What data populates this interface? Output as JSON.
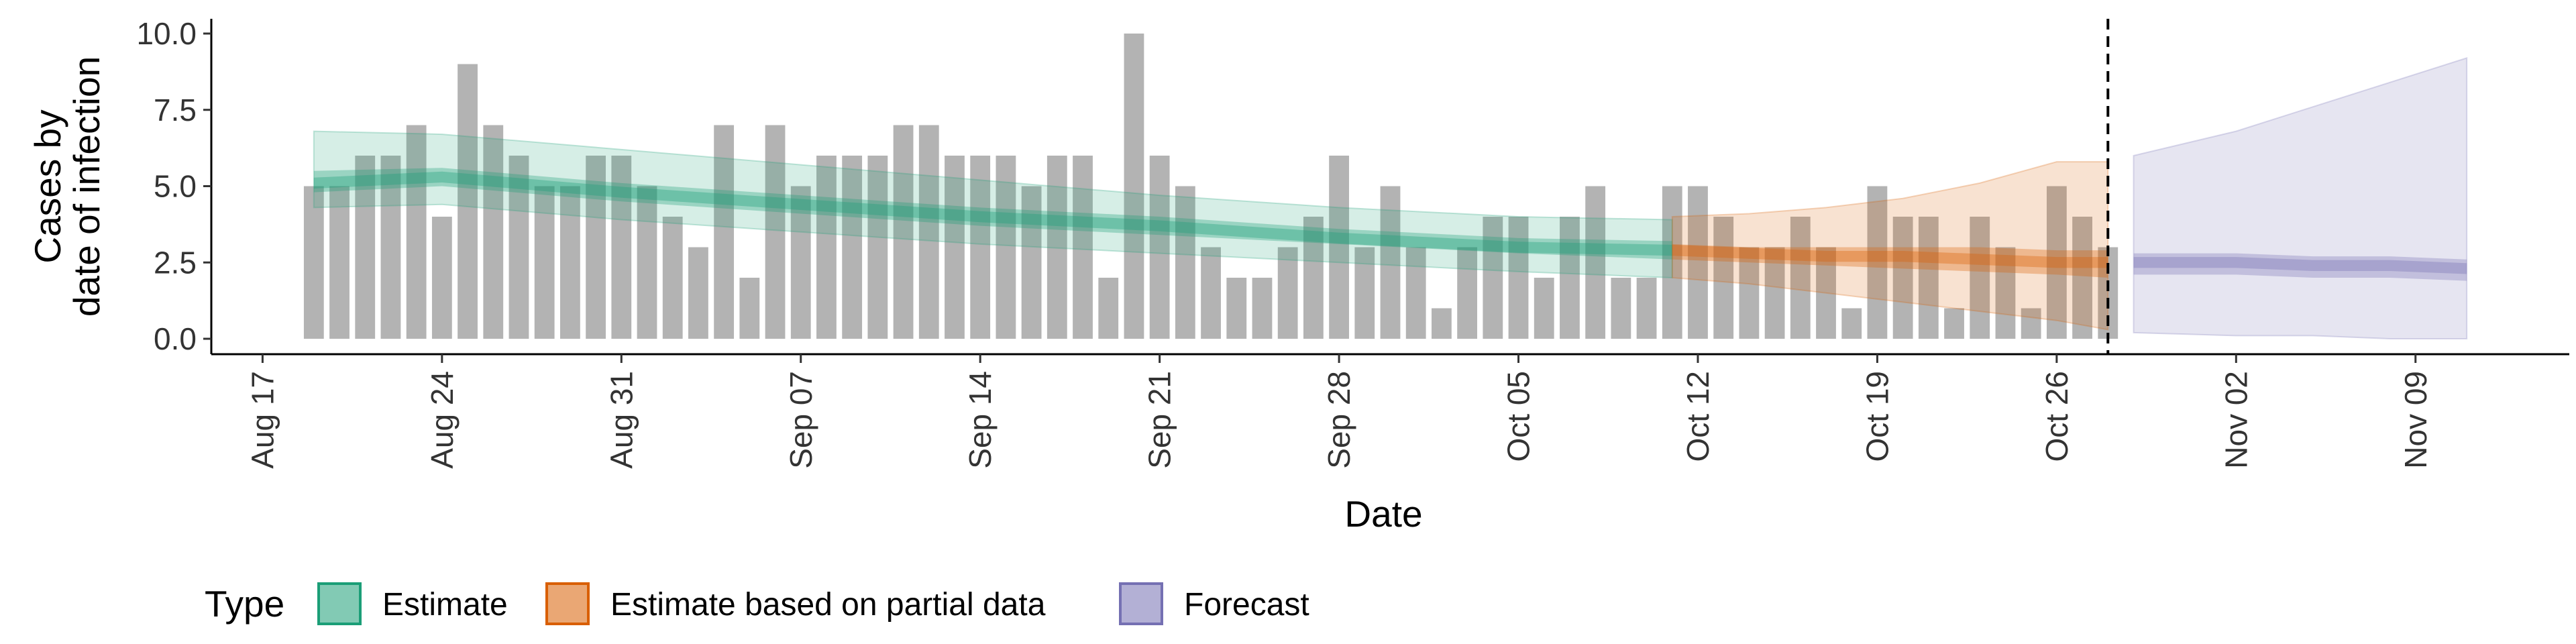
{
  "chart_data": {
    "type": "bar",
    "xlabel": "Date",
    "ylabel": [
      "Cases by",
      "date of infection"
    ],
    "x_start": "2020-08-19",
    "x_ticks": [
      "Aug 17",
      "Aug 24",
      "Aug 31",
      "Sep 07",
      "Sep 14",
      "Sep 21",
      "Sep 28",
      "Oct 05",
      "Oct 12",
      "Oct 19",
      "Oct 26",
      "Nov 02",
      "Nov 09"
    ],
    "xlim": [
      "2020-08-15",
      "2020-11-15"
    ],
    "y_ticks": [
      "0.0",
      "2.5",
      "5.0",
      "7.5",
      "10.0"
    ],
    "ylim": [
      0,
      10
    ],
    "reported_cases": [
      5,
      5,
      6,
      6,
      7,
      4,
      9,
      7,
      6,
      5,
      5,
      6,
      6,
      5,
      4,
      3,
      7,
      2,
      7,
      5,
      6,
      6,
      6,
      7,
      7,
      6,
      6,
      6,
      5,
      6,
      6,
      2,
      10,
      6,
      5,
      3,
      2,
      2,
      3,
      4,
      6,
      3,
      5,
      3,
      1,
      3,
      4,
      4,
      2,
      4,
      5,
      2,
      2,
      5,
      5,
      4,
      3,
      3,
      4,
      3,
      1,
      5,
      4,
      4,
      1,
      4,
      3,
      1,
      5,
      4,
      3
    ],
    "forecast_start_marker": "2020-10-28",
    "bands": [
      {
        "type": "Estimate",
        "color": "#1b9e77",
        "x": [
          "2020-08-19",
          "2020-08-24",
          "2020-08-31",
          "2020-09-07",
          "2020-09-14",
          "2020-09-21",
          "2020-09-28",
          "2020-10-05",
          "2020-10-11"
        ],
        "median": [
          5.1,
          5.3,
          4.8,
          4.4,
          4.0,
          3.7,
          3.3,
          3.0,
          2.9
        ],
        "lower_50": [
          4.8,
          5.0,
          4.5,
          4.1,
          3.7,
          3.4,
          3.1,
          2.8,
          2.6
        ],
        "upper_50": [
          5.5,
          5.6,
          5.1,
          4.7,
          4.3,
          4.0,
          3.6,
          3.3,
          3.2
        ],
        "lower_90": [
          4.3,
          4.4,
          3.9,
          3.5,
          3.1,
          2.8,
          2.5,
          2.2,
          2.0
        ],
        "upper_90": [
          6.8,
          6.7,
          6.2,
          5.7,
          5.2,
          4.7,
          4.3,
          4.0,
          3.9
        ]
      },
      {
        "type": "Estimate based on partial data",
        "color": "#d95f02",
        "x": [
          "2020-10-11",
          "2020-10-14",
          "2020-10-17",
          "2020-10-20",
          "2020-10-23",
          "2020-10-26",
          "2020-10-28"
        ],
        "median": [
          2.9,
          2.8,
          2.7,
          2.7,
          2.6,
          2.5,
          2.5
        ],
        "lower_50": [
          2.6,
          2.5,
          2.4,
          2.3,
          2.2,
          2.1,
          2.0
        ],
        "upper_50": [
          3.1,
          3.0,
          3.0,
          3.0,
          3.0,
          2.9,
          2.9
        ],
        "lower_90": [
          2.0,
          1.8,
          1.5,
          1.2,
          0.9,
          0.6,
          0.3
        ],
        "upper_90": [
          4.0,
          4.1,
          4.3,
          4.6,
          5.1,
          5.8,
          5.8
        ]
      },
      {
        "type": "Forecast",
        "color": "#7570b3",
        "x": [
          "2020-10-29",
          "2020-11-02",
          "2020-11-05",
          "2020-11-08",
          "2020-11-11"
        ],
        "median": [
          2.5,
          2.5,
          2.4,
          2.4,
          2.3
        ],
        "lower_50": [
          2.1,
          2.1,
          2.0,
          2.0,
          1.9
        ],
        "upper_50": [
          2.8,
          2.8,
          2.7,
          2.7,
          2.6
        ],
        "lower_90": [
          0.2,
          0.1,
          0.1,
          0.0,
          0.0
        ],
        "upper_90": [
          6.0,
          6.8,
          7.6,
          8.4,
          9.2
        ]
      }
    ],
    "bar_color": "#b3b3b3",
    "legend": {
      "title": "Type",
      "placement": "bottom-left",
      "items": [
        {
          "label": "Estimate",
          "color": "#1b9e77"
        },
        {
          "label": "Estimate based on partial data",
          "color": "#d95f02"
        },
        {
          "label": "Forecast",
          "color": "#7570b3"
        }
      ]
    }
  }
}
